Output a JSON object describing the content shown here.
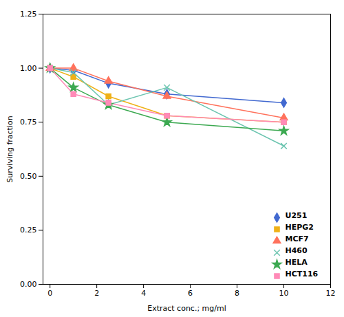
{
  "chart_data": {
    "type": "line",
    "xlabel": "Extract conc.; mg/ml",
    "ylabel": "Surviving fraction",
    "x": [
      0,
      1,
      2.5,
      5,
      10
    ],
    "series": [
      {
        "name": "U251",
        "marker": "diamond",
        "values": [
          1.0,
          0.99,
          0.93,
          0.88,
          0.84
        ]
      },
      {
        "name": "HEPG2",
        "marker": "square",
        "values": [
          1.0,
          0.96,
          0.87,
          0.78,
          0.75
        ]
      },
      {
        "name": "MCF7",
        "marker": "triangle",
        "values": [
          1.0,
          1.0,
          0.94,
          0.87,
          0.77
        ]
      },
      {
        "name": "H460",
        "marker": "times",
        "values": [
          1.0,
          0.98,
          0.83,
          0.91,
          0.64
        ]
      },
      {
        "name": "HELA",
        "marker": "star",
        "values": [
          1.0,
          0.91,
          0.83,
          0.75,
          0.71
        ]
      },
      {
        "name": "HCT116",
        "marker": "square",
        "values": [
          1.0,
          0.88,
          0.84,
          0.78,
          0.75
        ]
      }
    ],
    "xlim": [
      -0.3,
      12
    ],
    "xticks": [
      0,
      2,
      4,
      6,
      8,
      10,
      12
    ],
    "ylim": [
      0.0,
      1.25
    ],
    "yticks": [
      {
        "value": 0.0,
        "label": "0.00"
      },
      {
        "value": 0.25,
        "label": "0.25"
      },
      {
        "value": 0.5,
        "label": "0.50"
      },
      {
        "value": 0.75,
        "label": "0.75"
      },
      {
        "value": 1.0,
        "label": "1.00"
      },
      {
        "value": 1.25,
        "label": "1.25"
      }
    ],
    "grid": false,
    "legend": "lower right"
  }
}
